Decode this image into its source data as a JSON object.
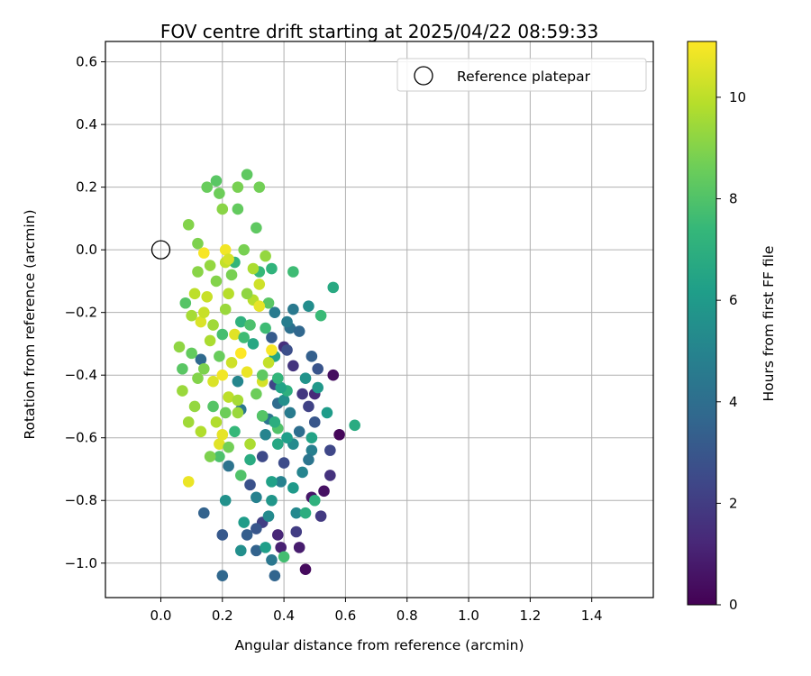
{
  "chart_data": {
    "type": "scatter",
    "title": "FOV centre drift starting at 2025/04/22 08:59:33",
    "xlabel": "Angular distance from reference (arcmin)",
    "ylabel": "Rotation from reference (arcmin)",
    "xlim": [
      -0.18,
      1.6
    ],
    "ylim": [
      -1.11,
      0.665
    ],
    "xticks": [
      "0.0",
      "0.2",
      "0.4",
      "0.6",
      "0.8",
      "1.0",
      "1.2",
      "1.4"
    ],
    "xtick_values": [
      0.0,
      0.2,
      0.4,
      0.6,
      0.8,
      1.0,
      1.2,
      1.4
    ],
    "yticks": [
      "0.6",
      "0.4",
      "0.2",
      "0.0",
      "−0.2",
      "−0.4",
      "−0.6",
      "−0.8",
      "−1.0"
    ],
    "ytick_values": [
      0.6,
      0.4,
      0.2,
      0.0,
      -0.2,
      -0.4,
      -0.6,
      -0.8,
      -1.0
    ],
    "grid": true,
    "legend": {
      "position": "top-right",
      "entries": [
        "Reference platepar"
      ]
    },
    "reference": {
      "x": 0.0,
      "y": 0.0
    },
    "colorbar": {
      "label": "Hours from first FF file",
      "range": [
        0,
        11.1
      ],
      "ticks": [
        "0",
        "2",
        "4",
        "6",
        "8",
        "10"
      ],
      "tick_values": [
        0,
        2,
        4,
        6,
        8,
        10
      ],
      "colormap": [
        "#440154",
        "#482878",
        "#3e4989",
        "#31688e",
        "#26828e",
        "#1f9e89",
        "#35b779",
        "#6ece58",
        "#b5de2b",
        "#fde725"
      ]
    },
    "points": [
      [
        0.47,
        -1.02,
        0.3
      ],
      [
        0.58,
        -0.59,
        0.2
      ],
      [
        0.56,
        -0.4,
        0.4
      ],
      [
        0.53,
        -0.77,
        0.5
      ],
      [
        0.49,
        -0.79,
        0.7
      ],
      [
        0.45,
        -0.95,
        0.9
      ],
      [
        0.39,
        -0.95,
        1.0
      ],
      [
        0.38,
        -0.91,
        1.2
      ],
      [
        0.5,
        -0.46,
        1.3
      ],
      [
        0.4,
        -0.31,
        1.5
      ],
      [
        0.43,
        -0.37,
        1.7
      ],
      [
        0.46,
        -0.46,
        1.8
      ],
      [
        0.52,
        -0.85,
        1.9
      ],
      [
        0.33,
        -0.87,
        2.1
      ],
      [
        0.48,
        -0.5,
        2.2
      ],
      [
        0.37,
        -0.43,
        2.3
      ],
      [
        0.55,
        -0.64,
        2.4
      ],
      [
        0.33,
        -0.66,
        2.5
      ],
      [
        0.4,
        -0.68,
        2.6
      ],
      [
        0.41,
        -0.32,
        2.7
      ],
      [
        0.29,
        -0.75,
        2.8
      ],
      [
        0.51,
        -0.38,
        2.9
      ],
      [
        0.31,
        -0.89,
        3.0
      ],
      [
        0.2,
        -0.91,
        3.1
      ],
      [
        0.36,
        -0.28,
        3.2
      ],
      [
        0.28,
        -0.91,
        3.3
      ],
      [
        0.49,
        -0.34,
        3.4
      ],
      [
        0.31,
        -0.96,
        3.5
      ],
      [
        0.14,
        -0.84,
        3.5
      ],
      [
        0.37,
        -1.04,
        3.6
      ],
      [
        0.2,
        -1.04,
        3.7
      ],
      [
        0.13,
        -0.35,
        3.8
      ],
      [
        0.38,
        -0.49,
        3.9
      ],
      [
        0.45,
        -0.58,
        4.0
      ],
      [
        0.42,
        -0.25,
        4.1
      ],
      [
        0.22,
        -0.69,
        4.2
      ],
      [
        0.35,
        -0.54,
        4.3
      ],
      [
        0.26,
        -0.51,
        4.4
      ],
      [
        0.43,
        -0.19,
        4.5
      ],
      [
        0.37,
        -0.2,
        4.6
      ],
      [
        0.41,
        -0.23,
        4.7
      ],
      [
        0.49,
        -0.64,
        4.8
      ],
      [
        0.39,
        -0.74,
        4.9
      ],
      [
        0.34,
        -0.59,
        5.0
      ],
      [
        0.25,
        -0.42,
        5.1
      ],
      [
        0.44,
        -0.84,
        5.2
      ],
      [
        0.35,
        -0.85,
        5.3
      ],
      [
        0.48,
        -0.18,
        5.4
      ],
      [
        0.4,
        -0.48,
        5.5
      ],
      [
        0.21,
        -0.8,
        5.6
      ],
      [
        0.47,
        -0.41,
        5.7
      ],
      [
        0.33,
        -0.53,
        5.8
      ],
      [
        0.51,
        -0.44,
        5.9
      ],
      [
        0.43,
        -0.76,
        6.0
      ],
      [
        0.54,
        -0.52,
        6.1
      ],
      [
        0.34,
        -0.95,
        6.2
      ],
      [
        0.36,
        -0.74,
        6.3
      ],
      [
        0.49,
        -0.6,
        6.4
      ],
      [
        0.37,
        -0.34,
        6.5
      ],
      [
        0.38,
        -0.62,
        6.6
      ],
      [
        0.56,
        -0.12,
        6.7
      ],
      [
        0.63,
        -0.56,
        6.8
      ],
      [
        0.47,
        -0.84,
        6.9
      ],
      [
        0.41,
        -0.45,
        7.0
      ],
      [
        0.5,
        -0.8,
        7.1
      ],
      [
        0.36,
        -0.06,
        7.2
      ],
      [
        0.24,
        -0.04,
        7.3
      ],
      [
        0.32,
        -0.07,
        7.4
      ],
      [
        0.52,
        -0.21,
        7.5
      ],
      [
        0.43,
        -0.07,
        7.6
      ],
      [
        0.4,
        -0.98,
        7.7
      ],
      [
        0.2,
        -0.27,
        7.8
      ],
      [
        0.19,
        -0.66,
        7.9
      ],
      [
        0.38,
        -0.57,
        8.0
      ],
      [
        0.33,
        -0.53,
        8.1
      ],
      [
        0.18,
        0.22,
        8.2
      ],
      [
        0.31,
        0.07,
        8.3
      ],
      [
        0.28,
        0.24,
        8.3
      ],
      [
        0.25,
        0.13,
        8.4
      ],
      [
        0.15,
        0.2,
        8.5
      ],
      [
        0.19,
        0.18,
        8.6
      ],
      [
        0.32,
        0.2,
        8.7
      ],
      [
        0.25,
        0.2,
        8.8
      ],
      [
        0.12,
        0.02,
        8.9
      ],
      [
        0.09,
        0.08,
        9.0
      ],
      [
        0.2,
        0.13,
        9.1
      ],
      [
        0.06,
        -0.31,
        9.2
      ],
      [
        0.34,
        -0.02,
        9.3
      ],
      [
        0.07,
        -0.45,
        9.4
      ],
      [
        0.09,
        -0.55,
        9.5
      ],
      [
        0.1,
        -0.21,
        9.6
      ],
      [
        0.16,
        -0.29,
        9.7
      ],
      [
        0.13,
        -0.58,
        9.8
      ],
      [
        0.22,
        -0.14,
        9.9
      ],
      [
        0.11,
        -0.14,
        10.0
      ],
      [
        0.21,
        -0.04,
        10.1
      ],
      [
        0.32,
        -0.11,
        10.3
      ],
      [
        0.17,
        -0.42,
        10.5
      ],
      [
        0.19,
        -0.62,
        10.6
      ],
      [
        0.09,
        -0.74,
        10.8
      ],
      [
        0.21,
        0.0,
        10.9
      ],
      [
        0.14,
        -0.01,
        11.0
      ],
      [
        0.26,
        -0.33,
        11.1
      ],
      [
        0.33,
        -0.42,
        10.4
      ],
      [
        0.2,
        -0.59,
        10.7
      ],
      [
        0.15,
        -0.15,
        10.2
      ],
      [
        0.3,
        -0.16,
        9.9
      ],
      [
        0.22,
        -0.47,
        10.0
      ],
      [
        0.28,
        -0.39,
        10.8
      ],
      [
        0.13,
        -0.23,
        10.5
      ],
      [
        0.34,
        -0.25,
        7.6
      ],
      [
        0.26,
        -0.23,
        7.1
      ],
      [
        0.3,
        -0.3,
        6.6
      ],
      [
        0.24,
        -0.58,
        7.4
      ],
      [
        0.37,
        -0.55,
        6.9
      ],
      [
        0.31,
        -0.46,
        8.6
      ],
      [
        0.14,
        -0.38,
        8.9
      ],
      [
        0.28,
        -0.14,
        9.2
      ],
      [
        0.25,
        -0.48,
        9.6
      ],
      [
        0.17,
        -0.5,
        8.1
      ],
      [
        0.21,
        -0.19,
        9.4
      ],
      [
        0.35,
        -0.36,
        10.1
      ],
      [
        0.12,
        -0.41,
        9.0
      ],
      [
        0.29,
        -0.62,
        9.7
      ],
      [
        0.19,
        -0.34,
        8.5
      ],
      [
        0.23,
        -0.08,
        8.8
      ],
      [
        0.16,
        -0.05,
        9.3
      ],
      [
        0.39,
        -0.44,
        6.4
      ],
      [
        0.43,
        -0.62,
        5.3
      ],
      [
        0.26,
        -0.72,
        8.0
      ],
      [
        0.42,
        -0.52,
        4.6
      ],
      [
        0.36,
        -0.8,
        5.8
      ],
      [
        0.45,
        -0.26,
        3.7
      ],
      [
        0.48,
        -0.67,
        4.3
      ],
      [
        0.27,
        -0.87,
        6.1
      ],
      [
        0.31,
        -0.79,
        4.9
      ],
      [
        0.33,
        -0.4,
        8.3
      ],
      [
        0.22,
        -0.63,
        8.7
      ],
      [
        0.18,
        -0.55,
        9.8
      ],
      [
        0.24,
        -0.27,
        10.6
      ],
      [
        0.29,
        -0.24,
        7.9
      ],
      [
        0.35,
        -0.17,
        8.2
      ],
      [
        0.1,
        -0.33,
        8.4
      ],
      [
        0.08,
        -0.17,
        8.1
      ],
      [
        0.12,
        -0.07,
        9.1
      ],
      [
        0.27,
        0.0,
        8.8
      ],
      [
        0.17,
        -0.24,
        9.5
      ],
      [
        0.23,
        -0.36,
        10.3
      ],
      [
        0.32,
        -0.18,
        10.7
      ],
      [
        0.2,
        -0.4,
        10.9
      ],
      [
        0.14,
        -0.2,
        10.2
      ],
      [
        0.25,
        -0.52,
        9.4
      ],
      [
        0.3,
        -0.06,
        9.7
      ],
      [
        0.36,
        -0.32,
        11.0
      ],
      [
        0.22,
        -0.03,
        10.4
      ],
      [
        0.18,
        -0.1,
        9.0
      ],
      [
        0.27,
        -0.28,
        7.6
      ],
      [
        0.38,
        -0.41,
        7.3
      ],
      [
        0.41,
        -0.6,
        6.2
      ],
      [
        0.46,
        -0.71,
        5.0
      ],
      [
        0.5,
        -0.55,
        3.0
      ],
      [
        0.55,
        -0.72,
        1.6
      ],
      [
        0.44,
        -0.9,
        2.0
      ],
      [
        0.36,
        -0.99,
        4.4
      ],
      [
        0.26,
        -0.96,
        5.5
      ],
      [
        0.29,
        -0.67,
        6.8
      ],
      [
        0.21,
        -0.52,
        8.6
      ],
      [
        0.16,
        -0.66,
        8.9
      ],
      [
        0.11,
        -0.5,
        9.3
      ],
      [
        0.07,
        -0.38,
        8.2
      ]
    ]
  }
}
